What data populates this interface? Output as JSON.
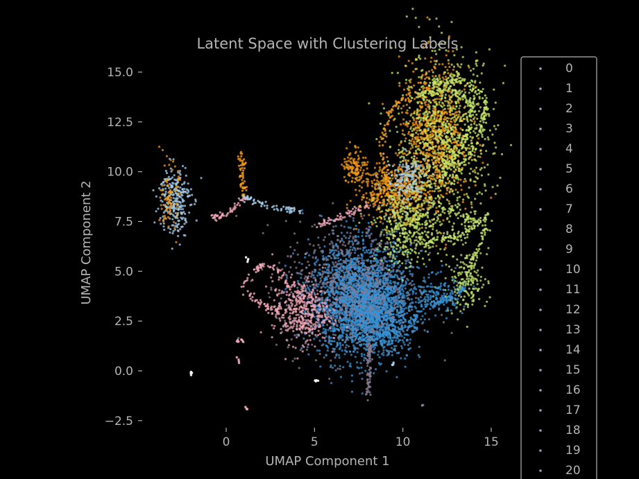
{
  "chart_data": {
    "type": "scatter",
    "title": "Latent Space with Clustering Labels",
    "xlabel": "UMAP Component 1",
    "ylabel": "UMAP Component 2",
    "xlim": [
      -4.5,
      15.5
    ],
    "ylim": [
      -3.0,
      16.2
    ],
    "x_ticks": [
      {
        "value": 0,
        "label": "0"
      },
      {
        "value": 5,
        "label": "5"
      },
      {
        "value": 10,
        "label": "10"
      },
      {
        "value": 15,
        "label": "15"
      }
    ],
    "y_ticks": [
      {
        "value": 15.0,
        "label": "15.0"
      },
      {
        "value": 12.5,
        "label": "12.5"
      },
      {
        "value": 10.0,
        "label": "10.0"
      },
      {
        "value": 7.5,
        "label": "7.5"
      },
      {
        "value": 5.0,
        "label": "5.0"
      },
      {
        "value": 2.5,
        "label": "2.5"
      },
      {
        "value": 0.0,
        "label": "0.0"
      },
      {
        "value": -2.5,
        "label": "−2.5"
      }
    ],
    "grid": false,
    "legend_position": "right",
    "legend_entries": [
      "0",
      "1",
      "2",
      "3",
      "4",
      "5",
      "6",
      "7",
      "8",
      "9",
      "10",
      "11",
      "12",
      "13",
      "14",
      "15",
      "16",
      "17",
      "18",
      "19",
      "20"
    ],
    "colors": {
      "background": "#000000",
      "text": "#b4b4b4",
      "blue": "#3a93d6",
      "orange": "#f59b18",
      "lime": "#c6e76a",
      "pink": "#f2a8b8",
      "mauve": "#8a7a90",
      "lightblue": "#a8d2f0",
      "white": "#ffffff"
    },
    "regions": [
      {
        "color": "blue",
        "cx": 7.6,
        "cy": 3.6,
        "sx": 1.4,
        "sy": 1.4,
        "n": 2400
      },
      {
        "color": "blue",
        "cx": 8.8,
        "cy": 2.6,
        "sx": 0.9,
        "sy": 0.8,
        "n": 600
      },
      {
        "color": "mauve",
        "cx": 7.0,
        "cy": 4.2,
        "sx": 1.9,
        "sy": 1.7,
        "n": 700
      },
      {
        "color": "pink",
        "cx": 4.2,
        "cy": 3.0,
        "sx": 0.8,
        "sy": 0.8,
        "n": 420
      },
      {
        "color": "orange",
        "cx": 11.8,
        "cy": 11.8,
        "sx": 1.0,
        "sy": 1.8,
        "n": 900
      },
      {
        "color": "orange",
        "cx": 9.6,
        "cy": 9.0,
        "sx": 1.0,
        "sy": 0.7,
        "n": 500
      },
      {
        "color": "orange",
        "cx": 7.3,
        "cy": 10.3,
        "sx": 0.35,
        "sy": 0.5,
        "n": 120
      },
      {
        "color": "lime",
        "cx": 12.3,
        "cy": 11.5,
        "sx": 1.4,
        "sy": 2.2,
        "n": 900
      },
      {
        "color": "lime",
        "cx": 10.3,
        "cy": 7.2,
        "sx": 0.9,
        "sy": 0.9,
        "n": 400
      },
      {
        "color": "lime",
        "cx": 13.6,
        "cy": 4.5,
        "sx": 0.6,
        "sy": 0.8,
        "n": 160
      },
      {
        "color": "lightblue",
        "cx": -2.9,
        "cy": 8.6,
        "sx": 0.45,
        "sy": 0.9,
        "n": 260
      },
      {
        "color": "orange",
        "cx": -3.2,
        "cy": 8.7,
        "sx": 0.25,
        "sy": 0.8,
        "n": 80
      },
      {
        "color": "blue",
        "cx": 11.8,
        "cy": 3.8,
        "sx": 0.8,
        "sy": 0.5,
        "n": 140
      },
      {
        "color": "lightblue",
        "cx": 10.3,
        "cy": 9.6,
        "sx": 0.6,
        "sy": 0.6,
        "n": 160
      }
    ],
    "strands": [
      {
        "color": "orange",
        "n": 60,
        "pts": [
          [
            0.9,
            10.9
          ],
          [
            0.9,
            9.5
          ],
          [
            1.0,
            8.7
          ]
        ]
      },
      {
        "color": "lightblue",
        "n": 60,
        "pts": [
          [
            1.0,
            8.7
          ],
          [
            2.5,
            8.2
          ],
          [
            4.3,
            8.0
          ]
        ]
      },
      {
        "color": "pink",
        "n": 50,
        "pts": [
          [
            -0.7,
            7.7
          ],
          [
            0.3,
            8.0
          ],
          [
            1.0,
            8.7
          ]
        ]
      },
      {
        "color": "pink",
        "n": 60,
        "pts": [
          [
            0.8,
            4.1
          ],
          [
            1.5,
            4.8
          ],
          [
            2.0,
            5.4
          ],
          [
            3.0,
            5.0
          ],
          [
            3.6,
            4.2
          ]
        ]
      },
      {
        "color": "pink",
        "n": 40,
        "pts": [
          [
            1.0,
            4.1
          ],
          [
            2.0,
            3.3
          ],
          [
            3.0,
            3.0
          ]
        ]
      },
      {
        "color": "lime",
        "n": 150,
        "pts": [
          [
            12.6,
            9.2
          ],
          [
            14.3,
            11.5
          ],
          [
            14.7,
            13.5
          ],
          [
            13.4,
            14.7
          ],
          [
            11.5,
            14.4
          ]
        ]
      },
      {
        "color": "lime",
        "n": 150,
        "pts": [
          [
            12.0,
            9.6
          ],
          [
            13.6,
            11.6
          ],
          [
            14.0,
            13.4
          ],
          [
            12.6,
            14.2
          ],
          [
            10.8,
            13.8
          ]
        ]
      },
      {
        "color": "lime",
        "n": 110,
        "pts": [
          [
            11.6,
            8.4
          ],
          [
            13.6,
            7.7
          ],
          [
            14.7,
            7.2
          ],
          [
            14.0,
            5.6
          ],
          [
            13.1,
            4.0
          ]
        ]
      },
      {
        "color": "lime",
        "n": 90,
        "pts": [
          [
            11.0,
            6.4
          ],
          [
            13.3,
            6.8
          ],
          [
            14.8,
            7.8
          ]
        ]
      },
      {
        "color": "orange",
        "n": 70,
        "pts": [
          [
            9.2,
            9.3
          ],
          [
            8.7,
            11.2
          ],
          [
            9.3,
            13.2
          ],
          [
            10.5,
            14.0
          ]
        ]
      },
      {
        "color": "mauve",
        "n": 80,
        "pts": [
          [
            8.1,
            1.8
          ],
          [
            8.1,
            0.5
          ],
          [
            8.0,
            -1.4
          ]
        ]
      },
      {
        "color": "blue",
        "n": 80,
        "pts": [
          [
            10.2,
            2.0
          ],
          [
            11.2,
            3.2
          ],
          [
            12.6,
            3.6
          ],
          [
            13.5,
            4.2
          ]
        ]
      },
      {
        "color": "pink",
        "n": 60,
        "pts": [
          [
            5.2,
            7.3
          ],
          [
            6.5,
            7.7
          ],
          [
            8.0,
            8.3
          ]
        ]
      }
    ],
    "specks": [
      {
        "color": "white",
        "x": -2.0,
        "y": -0.1
      },
      {
        "color": "white",
        "x": 5.1,
        "y": -0.5
      },
      {
        "color": "pink",
        "x": 0.6,
        "y": 1.5
      },
      {
        "color": "pink",
        "x": 0.9,
        "y": 1.5
      },
      {
        "color": "pink",
        "x": 0.7,
        "y": 0.5
      },
      {
        "color": "pink",
        "x": 1.1,
        "y": -1.9
      },
      {
        "color": "mauve",
        "x": 11.1,
        "y": -1.7
      },
      {
        "color": "white",
        "x": 1.2,
        "y": 5.6
      },
      {
        "color": "lightblue",
        "x": 9.5,
        "y": 0.3
      }
    ]
  }
}
